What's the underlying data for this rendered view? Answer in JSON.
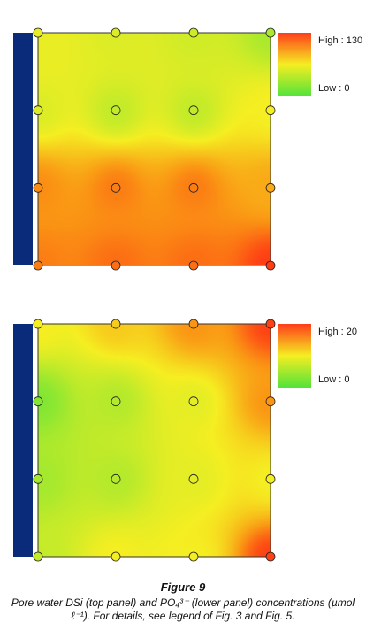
{
  "chart_data": [
    {
      "type": "heatmap",
      "panel": "top",
      "legend": {
        "high_label": "High : 130",
        "low_label": "Low : 0",
        "min": 0,
        "max": 130
      },
      "sample_points": [
        {
          "row": 0,
          "col": 0,
          "value": 60
        },
        {
          "row": 0,
          "col": 1,
          "value": 55
        },
        {
          "row": 0,
          "col": 2,
          "value": 50
        },
        {
          "row": 0,
          "col": 3,
          "value": 35
        },
        {
          "row": 1,
          "col": 0,
          "value": 55
        },
        {
          "row": 1,
          "col": 1,
          "value": 45
        },
        {
          "row": 1,
          "col": 2,
          "value": 45
        },
        {
          "row": 1,
          "col": 3,
          "value": 65
        },
        {
          "row": 2,
          "col": 0,
          "value": 100
        },
        {
          "row": 2,
          "col": 1,
          "value": 105
        },
        {
          "row": 2,
          "col": 2,
          "value": 105
        },
        {
          "row": 2,
          "col": 3,
          "value": 90
        },
        {
          "row": 3,
          "col": 0,
          "value": 105
        },
        {
          "row": 3,
          "col": 1,
          "value": 110
        },
        {
          "row": 3,
          "col": 2,
          "value": 110
        },
        {
          "row": 3,
          "col": 3,
          "value": 125
        }
      ]
    },
    {
      "type": "heatmap",
      "panel": "lower",
      "legend": {
        "high_label": "High : 20",
        "low_label": "Low : 0",
        "min": 0,
        "max": 20
      },
      "sample_points": [
        {
          "row": 0,
          "col": 0,
          "value": 10
        },
        {
          "row": 0,
          "col": 1,
          "value": 12
        },
        {
          "row": 0,
          "col": 2,
          "value": 15
        },
        {
          "row": 0,
          "col": 3,
          "value": 19
        },
        {
          "row": 1,
          "col": 0,
          "value": 3
        },
        {
          "row": 1,
          "col": 1,
          "value": 6
        },
        {
          "row": 1,
          "col": 2,
          "value": 9
        },
        {
          "row": 1,
          "col": 3,
          "value": 15
        },
        {
          "row": 2,
          "col": 0,
          "value": 5
        },
        {
          "row": 2,
          "col": 1,
          "value": 6
        },
        {
          "row": 2,
          "col": 2,
          "value": 9
        },
        {
          "row": 2,
          "col": 3,
          "value": 10
        },
        {
          "row": 3,
          "col": 0,
          "value": 7
        },
        {
          "row": 3,
          "col": 1,
          "value": 10
        },
        {
          "row": 3,
          "col": 2,
          "value": 10
        },
        {
          "row": 3,
          "col": 3,
          "value": 19
        }
      ]
    }
  ],
  "caption": {
    "title": "Figure 9",
    "text": "Pore water DSi (top panel) and PO₄³⁻ (lower panel) concentrations (µmol ℓ⁻¹). For details, see legend of Fig. 3 and Fig. 5."
  }
}
